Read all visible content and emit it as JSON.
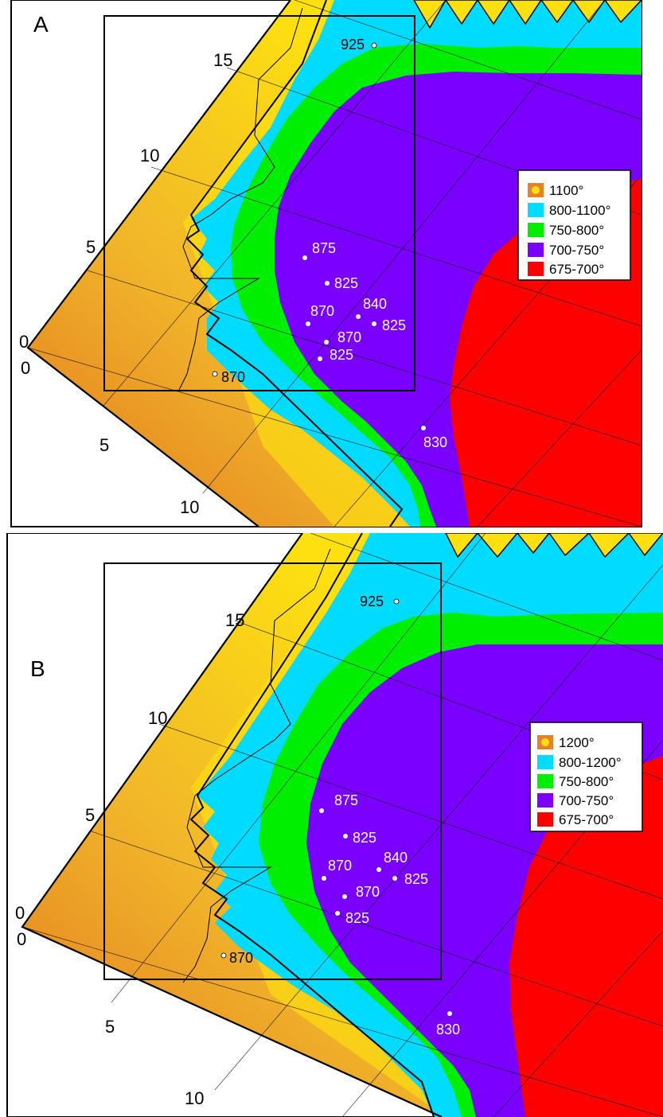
{
  "colors": {
    "orange_gradient_start": "#e5832d",
    "orange_gradient_end": "#fde010",
    "yellow": "#fce016",
    "cyan": "#00dcff",
    "green": "#00ee00",
    "purple": "#7a00ff",
    "red": "#ff0000"
  },
  "panels": [
    {
      "letter": "A",
      "axis_labels": {
        "left_0": "0",
        "bottom_0": "0",
        "left_5": "5",
        "left_10": "10",
        "left_15": "15",
        "bottom_5": "5",
        "bottom_10": "10"
      },
      "legend": [
        {
          "label": "1100°",
          "swatch": "gradient"
        },
        {
          "label": "800-1100°",
          "swatch": "cyan"
        },
        {
          "label": "750-800°",
          "swatch": "green"
        },
        {
          "label": "700-750°",
          "swatch": "purple"
        },
        {
          "label": "675-700°",
          "swatch": "red"
        }
      ],
      "points": [
        "925",
        "875",
        "825",
        "870",
        "840",
        "825",
        "870",
        "825",
        "870",
        "830"
      ]
    },
    {
      "letter": "B",
      "axis_labels": {
        "left_0": "0",
        "bottom_0": "0",
        "left_5": "5",
        "left_10": "10",
        "left_15": "15",
        "bottom_5": "5",
        "bottom_10": "10"
      },
      "legend": [
        {
          "label": "1200°",
          "swatch": "gradient"
        },
        {
          "label": "800-1200°",
          "swatch": "cyan"
        },
        {
          "label": "750-800°",
          "swatch": "green"
        },
        {
          "label": "700-750°",
          "swatch": "purple"
        },
        {
          "label": "675-700°",
          "swatch": "red"
        }
      ],
      "points": [
        "925",
        "875",
        "825",
        "870",
        "840",
        "825",
        "870",
        "825",
        "870",
        "830"
      ]
    }
  ]
}
